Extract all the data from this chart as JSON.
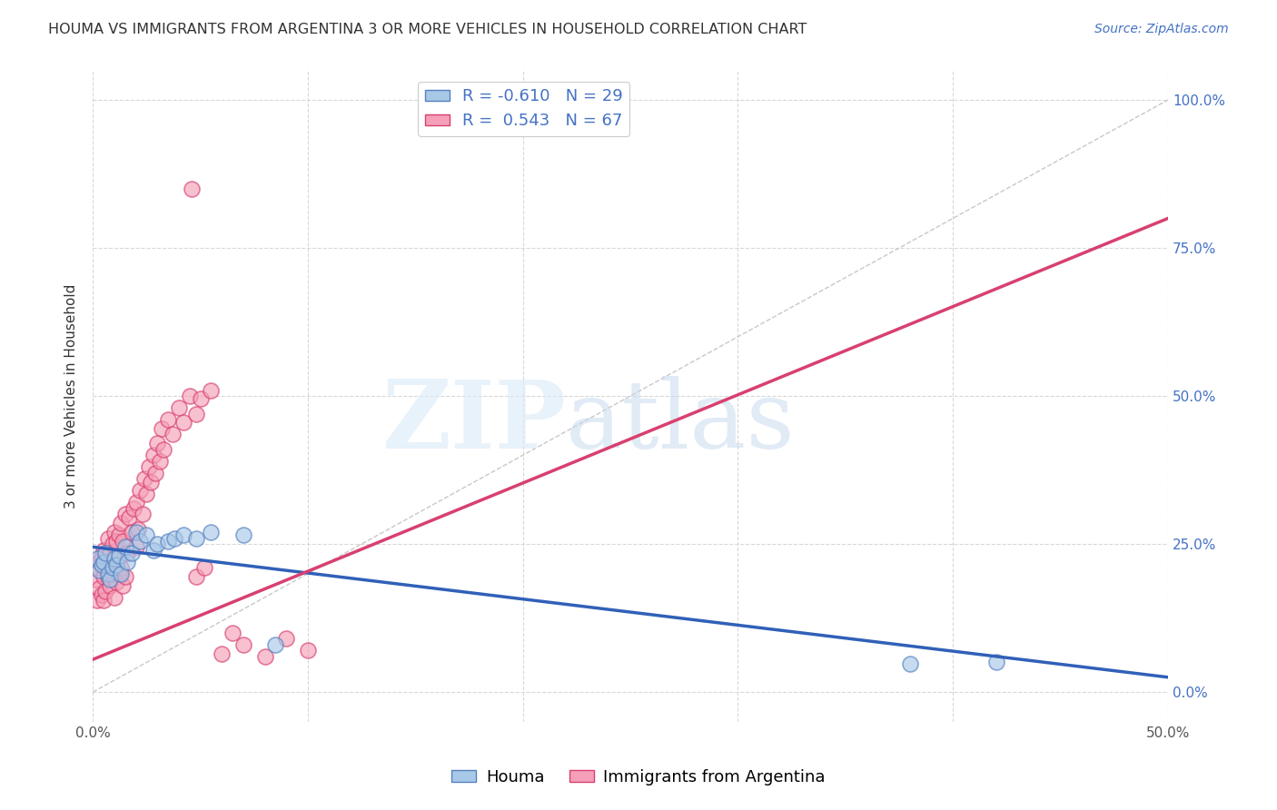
{
  "title": "HOUMA VS IMMIGRANTS FROM ARGENTINA 3 OR MORE VEHICLES IN HOUSEHOLD CORRELATION CHART",
  "source": "Source: ZipAtlas.com",
  "ylabel": "3 or more Vehicles in Household",
  "xlim": [
    0.0,
    0.5
  ],
  "ylim": [
    -0.05,
    1.05
  ],
  "x_ticks": [
    0.0,
    0.1,
    0.2,
    0.3,
    0.4,
    0.5
  ],
  "x_tick_labels": [
    "0.0%",
    "",
    "",
    "",
    "",
    "50.0%"
  ],
  "y_ticks": [
    0.0,
    0.25,
    0.5,
    0.75,
    1.0
  ],
  "y_tick_labels": [
    "0.0%",
    "25.0%",
    "50.0%",
    "75.0%",
    "100.0%"
  ],
  "houma_R": -0.61,
  "houma_N": 29,
  "argentina_R": 0.543,
  "argentina_N": 67,
  "legend_labels": [
    "Houma",
    "Immigrants from Argentina"
  ],
  "houma_color": "#a8c8e8",
  "argentina_color": "#f5a0b8",
  "houma_edge_color": "#5580c0",
  "argentina_edge_color": "#d84070",
  "houma_line_color": "#3060b8",
  "argentina_line_color": "#d84070",
  "background_color": "#ffffff",
  "grid_color": "#d8d8d8",
  "diag_color": "#c8c8c8",
  "houma_x": [
    0.002,
    0.003,
    0.004,
    0.005,
    0.006,
    0.007,
    0.008,
    0.009,
    0.01,
    0.011,
    0.012,
    0.013,
    0.015,
    0.016,
    0.018,
    0.02,
    0.022,
    0.025,
    0.028,
    0.03,
    0.035,
    0.038,
    0.042,
    0.048,
    0.055,
    0.07,
    0.085,
    0.38,
    0.42
  ],
  "houma_y": [
    0.225,
    0.205,
    0.215,
    0.22,
    0.235,
    0.2,
    0.19,
    0.21,
    0.225,
    0.215,
    0.23,
    0.2,
    0.245,
    0.22,
    0.235,
    0.27,
    0.255,
    0.265,
    0.24,
    0.25,
    0.255,
    0.26,
    0.265,
    0.26,
    0.27,
    0.265,
    0.08,
    0.048,
    0.05
  ],
  "argentina_x": [
    0.001,
    0.002,
    0.002,
    0.003,
    0.003,
    0.004,
    0.004,
    0.005,
    0.005,
    0.005,
    0.006,
    0.006,
    0.007,
    0.007,
    0.008,
    0.008,
    0.009,
    0.009,
    0.01,
    0.01,
    0.01,
    0.011,
    0.011,
    0.012,
    0.012,
    0.013,
    0.013,
    0.014,
    0.014,
    0.015,
    0.015,
    0.016,
    0.017,
    0.018,
    0.019,
    0.02,
    0.02,
    0.021,
    0.022,
    0.023,
    0.024,
    0.025,
    0.026,
    0.027,
    0.028,
    0.029,
    0.03,
    0.031,
    0.032,
    0.033,
    0.035,
    0.037,
    0.04,
    0.042,
    0.045,
    0.048,
    0.05,
    0.055,
    0.06,
    0.065,
    0.07,
    0.08,
    0.09,
    0.1,
    0.046,
    0.048,
    0.052
  ],
  "argentina_y": [
    0.19,
    0.155,
    0.21,
    0.175,
    0.22,
    0.165,
    0.23,
    0.155,
    0.195,
    0.24,
    0.17,
    0.215,
    0.195,
    0.26,
    0.18,
    0.235,
    0.2,
    0.25,
    0.16,
    0.215,
    0.27,
    0.185,
    0.255,
    0.2,
    0.265,
    0.21,
    0.285,
    0.18,
    0.255,
    0.195,
    0.3,
    0.235,
    0.295,
    0.27,
    0.31,
    0.245,
    0.32,
    0.275,
    0.34,
    0.3,
    0.36,
    0.335,
    0.38,
    0.355,
    0.4,
    0.37,
    0.42,
    0.39,
    0.445,
    0.41,
    0.46,
    0.435,
    0.48,
    0.455,
    0.5,
    0.47,
    0.495,
    0.51,
    0.065,
    0.1,
    0.08,
    0.06,
    0.09,
    0.07,
    0.85,
    0.195,
    0.21
  ],
  "houma_trend_x": [
    0.0,
    0.5
  ],
  "houma_trend_y": [
    0.245,
    0.025
  ],
  "argentina_trend_x": [
    0.0,
    0.5
  ],
  "argentina_trend_y": [
    0.055,
    0.8
  ]
}
